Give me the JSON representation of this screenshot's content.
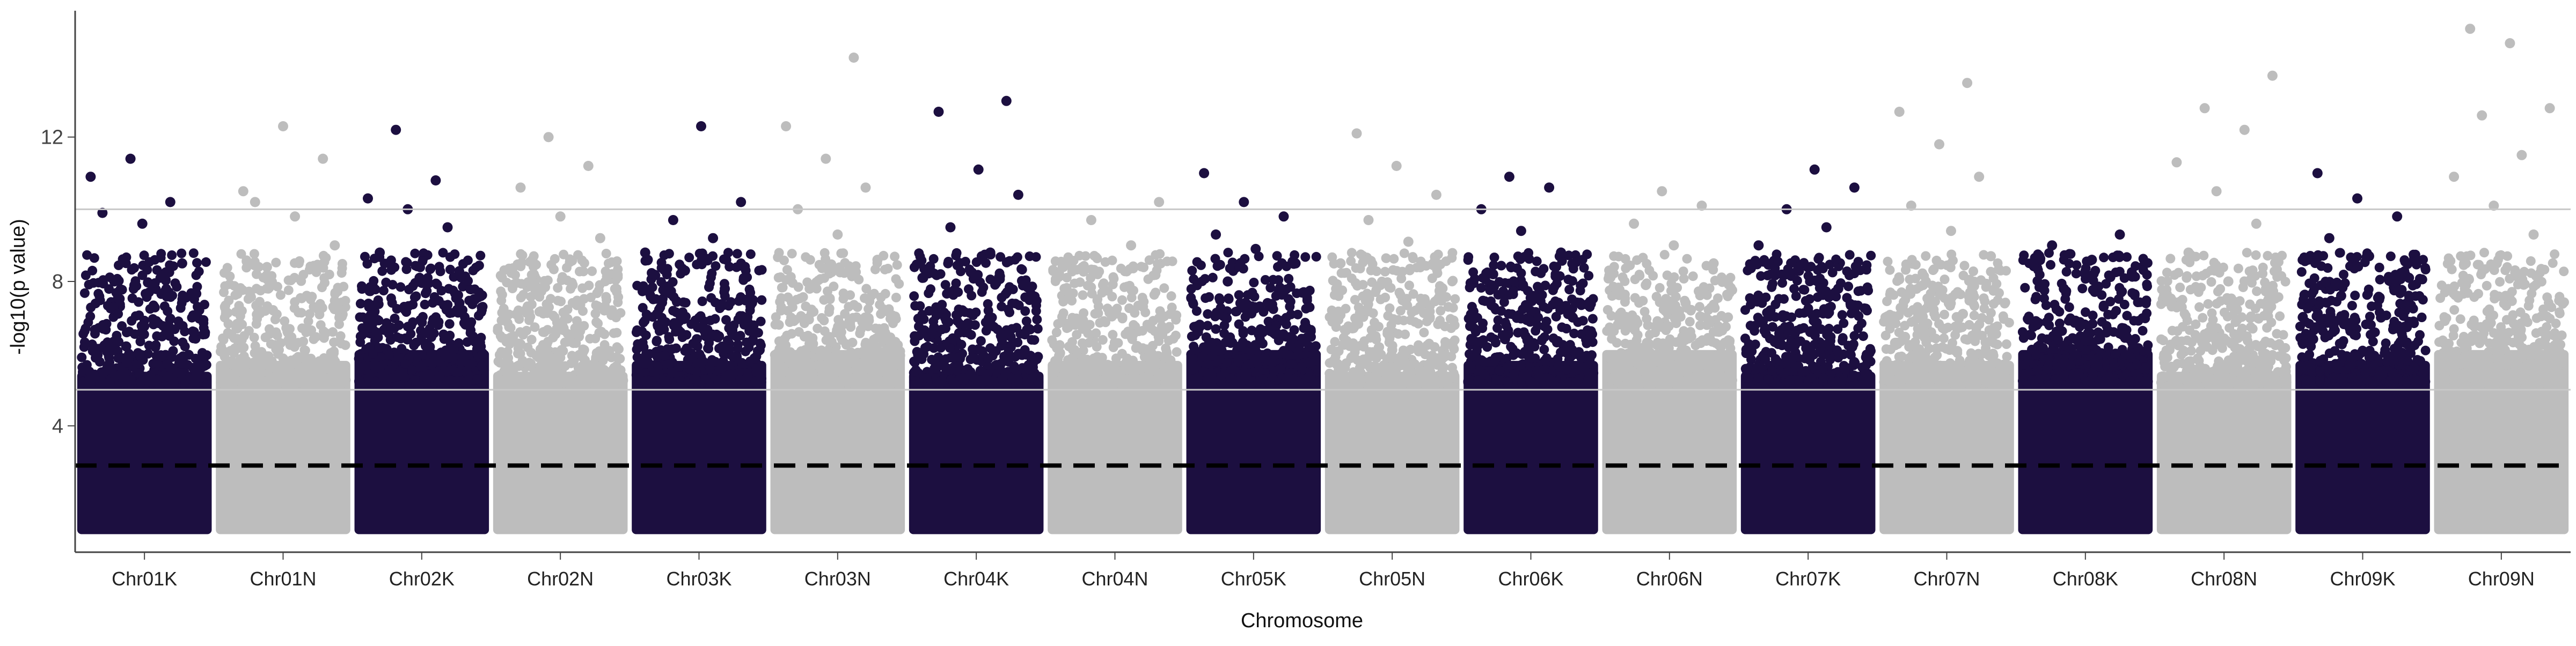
{
  "chart_data": {
    "type": "scatter",
    "subtype": "manhattan",
    "title": "",
    "xlabel": "Chromosome",
    "ylabel": "-log10(p value)",
    "ylim": [
      0.5,
      15.5
    ],
    "yticks": [
      4,
      8,
      12
    ],
    "grid": false,
    "legend": "none",
    "categories": [
      "Chr01K",
      "Chr01N",
      "Chr02K",
      "Chr02N",
      "Chr03K",
      "Chr03N",
      "Chr04K",
      "Chr04N",
      "Chr05K",
      "Chr05N",
      "Chr06K",
      "Chr06N",
      "Chr07K",
      "Chr07N",
      "Chr08K",
      "Chr08N",
      "Chr09K",
      "Chr09N"
    ],
    "point_colors": [
      "#1c0f40",
      "#bdbdbd"
    ],
    "significance_line": 2.9,
    "reference_lines": [
      5.0,
      10.0
    ],
    "series": [
      {
        "chromosome": "Chr01K",
        "top_points": [
          10.9,
          11.4,
          10.2,
          9.9,
          9.6,
          8.5,
          8.0,
          7.3,
          6.6,
          6.2
        ]
      },
      {
        "chromosome": "Chr01N",
        "top_points": [
          10.5,
          12.3,
          11.4,
          10.2,
          9.8,
          9.0,
          8.4,
          7.6,
          6.8,
          6.1
        ]
      },
      {
        "chromosome": "Chr02K",
        "top_points": [
          12.2,
          10.8,
          10.3,
          10.0,
          9.5,
          8.8,
          8.1,
          7.4,
          6.7,
          6.0
        ]
      },
      {
        "chromosome": "Chr02N",
        "top_points": [
          12.0,
          11.2,
          10.6,
          9.8,
          9.2,
          8.6,
          7.9,
          7.2,
          6.6,
          6.1
        ]
      },
      {
        "chromosome": "Chr03K",
        "top_points": [
          12.3,
          10.2,
          9.7,
          9.2,
          8.8,
          8.3,
          7.8,
          7.1,
          6.4,
          5.9
        ]
      },
      {
        "chromosome": "Chr03N",
        "top_points": [
          14.2,
          12.3,
          11.4,
          10.6,
          10.0,
          9.3,
          8.6,
          7.8,
          6.9,
          6.0
        ]
      },
      {
        "chromosome": "Chr04K",
        "top_points": [
          13.0,
          12.7,
          11.1,
          10.4,
          9.5,
          8.8,
          8.1,
          7.2,
          6.4,
          5.8
        ]
      },
      {
        "chromosome": "Chr04N",
        "top_points": [
          10.2,
          9.7,
          9.0,
          8.4,
          7.9,
          7.3,
          6.8,
          6.3,
          5.9,
          5.5
        ]
      },
      {
        "chromosome": "Chr05K",
        "top_points": [
          11.0,
          10.2,
          9.8,
          9.3,
          8.9,
          8.5,
          8.0,
          7.4,
          6.8,
          6.2
        ]
      },
      {
        "chromosome": "Chr05N",
        "top_points": [
          12.1,
          11.2,
          10.4,
          9.7,
          9.1,
          8.5,
          7.9,
          7.3,
          6.7,
          6.1
        ]
      },
      {
        "chromosome": "Chr06K",
        "top_points": [
          10.9,
          10.6,
          10.0,
          9.4,
          8.8,
          8.2,
          7.6,
          7.0,
          6.4,
          5.8
        ]
      },
      {
        "chromosome": "Chr06N",
        "top_points": [
          10.5,
          10.1,
          9.6,
          9.0,
          8.5,
          7.9,
          7.4,
          6.8,
          6.3,
          5.7
        ]
      },
      {
        "chromosome": "Chr07K",
        "top_points": [
          11.1,
          10.6,
          10.0,
          9.5,
          9.0,
          8.4,
          7.8,
          7.2,
          6.6,
          6.0
        ]
      },
      {
        "chromosome": "Chr07N",
        "top_points": [
          13.5,
          12.7,
          11.8,
          10.9,
          10.1,
          9.4,
          8.7,
          7.9,
          7.1,
          6.3
        ]
      },
      {
        "chromosome": "Chr08K",
        "top_points": [
          9.3,
          9.0,
          8.6,
          8.2,
          7.8,
          7.3,
          6.9,
          6.4,
          6.0,
          5.6
        ]
      },
      {
        "chromosome": "Chr08N",
        "top_points": [
          13.7,
          12.8,
          12.2,
          11.3,
          10.5,
          9.6,
          8.8,
          8.0,
          7.2,
          6.4
        ]
      },
      {
        "chromosome": "Chr09K",
        "top_points": [
          11.0,
          10.3,
          9.8,
          9.2,
          8.7,
          8.1,
          7.6,
          7.0,
          6.4,
          5.9
        ]
      },
      {
        "chromosome": "Chr09N",
        "top_points": [
          15.0,
          14.6,
          12.8,
          12.6,
          11.5,
          10.9,
          10.1,
          9.3,
          8.5,
          7.6
        ]
      }
    ]
  }
}
